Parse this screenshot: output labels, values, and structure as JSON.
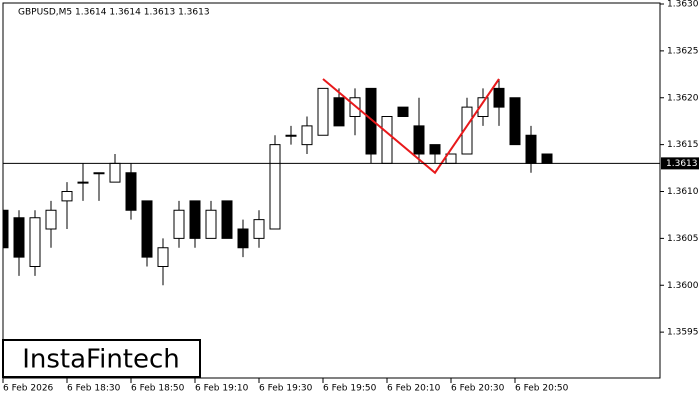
{
  "chart_data": {
    "type": "candlestick",
    "title": "GBPUSD,M5  1.3614 1.3614 1.3613 1.3613",
    "watermark": "InstaFintech",
    "categories": [
      "6 Feb 2026",
      null,
      null,
      null,
      "6 Feb 18:30",
      null,
      null,
      null,
      "6 Feb 18:50",
      null,
      null,
      null,
      "6 Feb 19:10",
      null,
      null,
      null,
      "6 Feb 19:30",
      null,
      null,
      null,
      "6 Feb 19:50",
      null,
      null,
      null,
      "6 Feb 20:10",
      null,
      null,
      null,
      "6 Feb 20:30",
      null,
      null,
      null,
      "6 Feb 20:50",
      null,
      null
    ],
    "open": [
      1.3608,
      1.36072,
      1.3602,
      1.3606,
      1.3609,
      1.3611,
      1.3612,
      1.3611,
      1.3612,
      1.3609,
      1.3602,
      1.3605,
      1.3609,
      1.3605,
      1.3609,
      1.3606,
      1.3605,
      1.3606,
      1.3616,
      1.3615,
      1.3616,
      1.362,
      1.3618,
      1.3621,
      1.3613,
      1.3619,
      1.3617,
      1.3615,
      1.3613,
      1.3614,
      1.3618,
      1.3621,
      1.362,
      1.3616,
      1.3614
    ],
    "high": [
      1.3612,
      1.3608,
      1.3608,
      1.3609,
      1.3611,
      1.3613,
      1.3612,
      1.3614,
      1.3613,
      1.3609,
      1.3605,
      1.3609,
      1.3609,
      1.3609,
      1.3609,
      1.3607,
      1.3608,
      1.3616,
      1.3617,
      1.3618,
      1.3621,
      1.3621,
      1.3621,
      1.3621,
      1.3618,
      1.3619,
      1.362,
      1.3615,
      1.3614,
      1.362,
      1.3621,
      1.3622,
      1.362,
      1.3617,
      1.3614
    ],
    "low": [
      1.3603,
      1.3601,
      1.3601,
      1.3604,
      1.3606,
      1.3609,
      1.3609,
      1.3611,
      1.3607,
      1.3602,
      1.36,
      1.3604,
      1.3604,
      1.3605,
      1.3605,
      1.3603,
      1.3604,
      1.3606,
      1.3615,
      1.3614,
      1.3616,
      1.3617,
      1.3616,
      1.3613,
      1.3613,
      1.3618,
      1.3613,
      1.3613,
      1.3613,
      1.3614,
      1.3617,
      1.3617,
      1.3615,
      1.3612,
      1.3613
    ],
    "close": [
      1.3604,
      1.3603,
      1.36072,
      1.3608,
      1.361,
      1.3611,
      1.3612,
      1.3613,
      1.3608,
      1.3603,
      1.3604,
      1.3608,
      1.3605,
      1.3608,
      1.3605,
      1.3604,
      1.3607,
      1.3615,
      1.3616,
      1.3617,
      1.3621,
      1.3617,
      1.362,
      1.3614,
      1.3618,
      1.3618,
      1.3614,
      1.3614,
      1.3614,
      1.3619,
      1.362,
      1.3619,
      1.3615,
      1.3613,
      1.3613
    ],
    "current_price": 1.3613,
    "pattern": {
      "color": "#e8191b",
      "x": [
        20,
        27,
        31
      ],
      "values": [
        1.3622,
        1.3612,
        1.3622
      ]
    },
    "ylim": [
      1.359,
      1.363
    ],
    "yticks": [
      1.3595,
      {
        "value": 1.36,
        "label": "1.3600"
      },
      1.3605,
      {
        "value": 1.361,
        "label": "1.3610"
      },
      1.3615,
      {
        "value": 1.362,
        "label": "1.3620"
      },
      1.3625,
      {
        "value": 1.363,
        "label": "1.3630"
      }
    ]
  }
}
